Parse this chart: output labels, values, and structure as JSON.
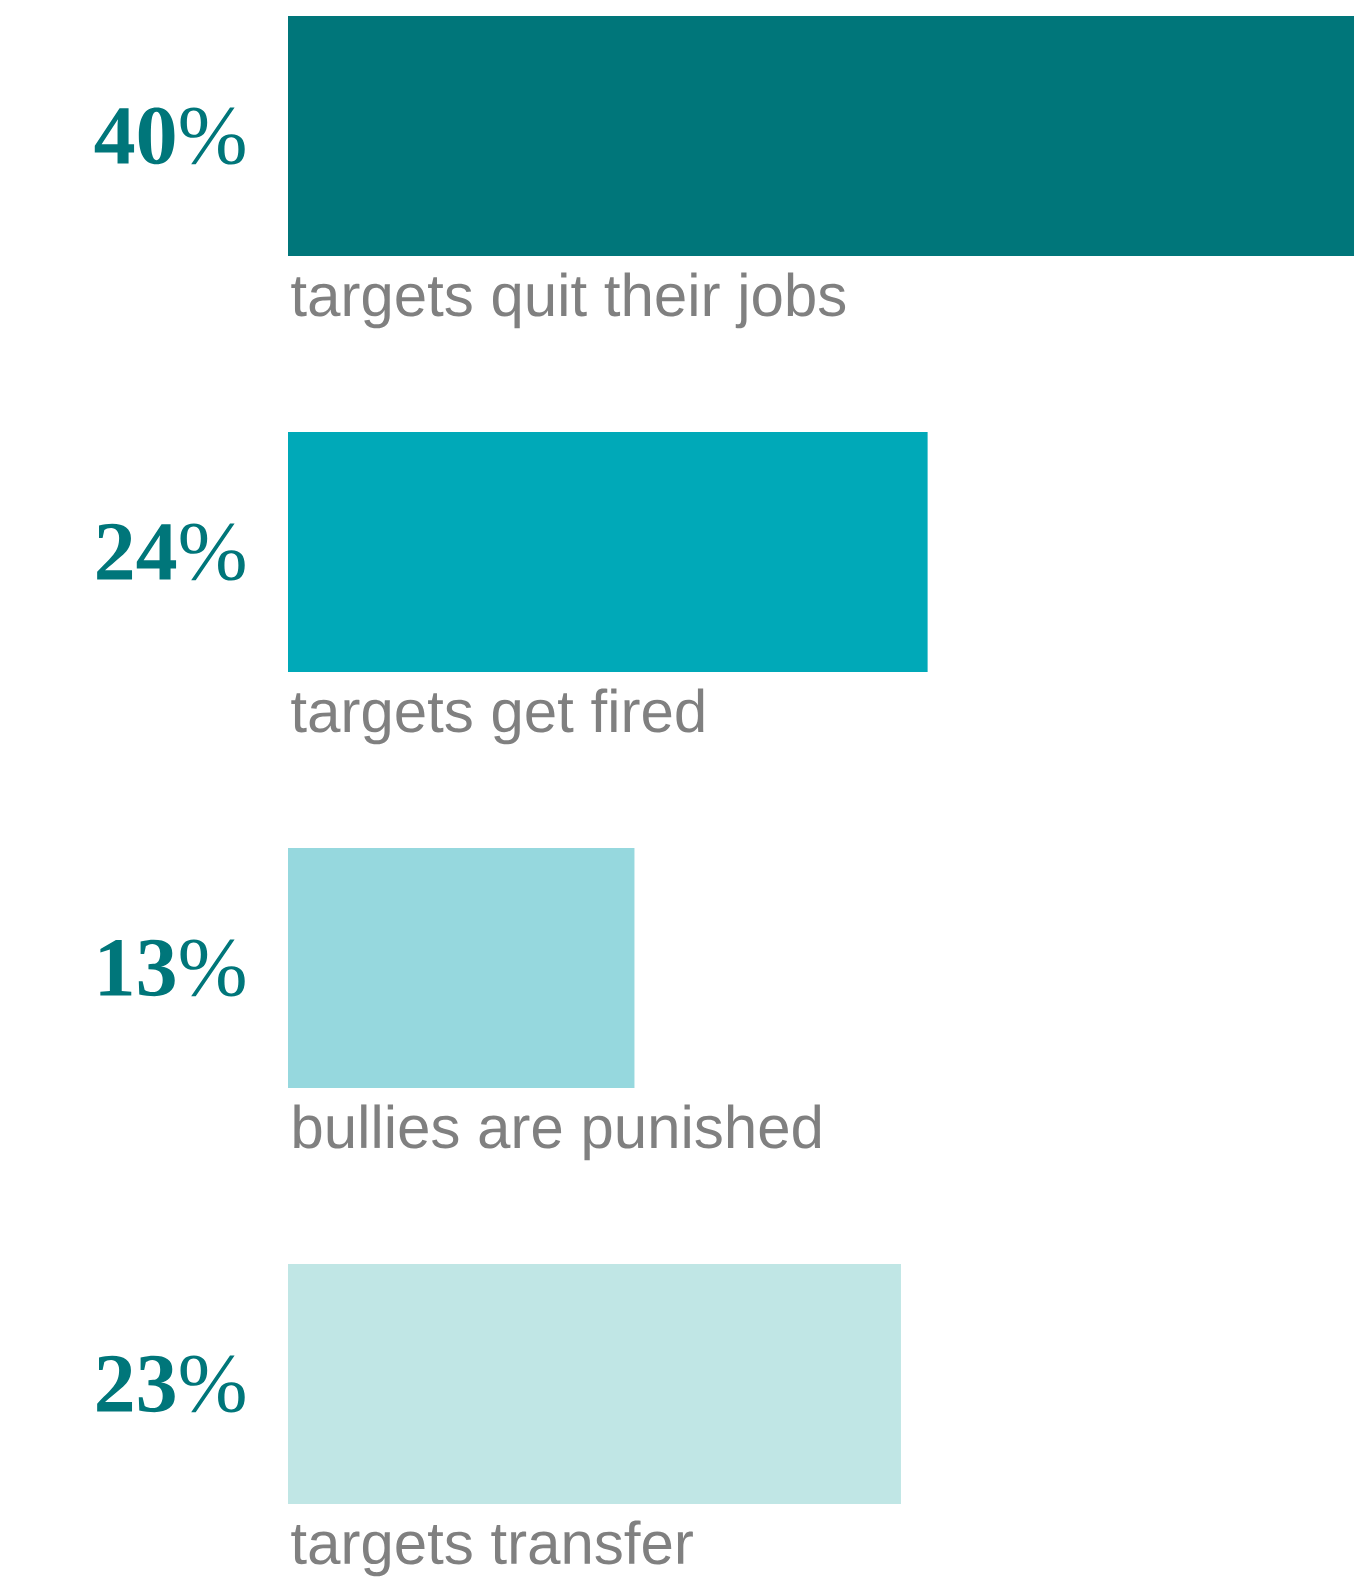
{
  "chart_data": {
    "type": "bar",
    "orientation": "horizontal",
    "categories": [
      "targets quit their jobs",
      "targets get fired",
      "bullies are punished",
      "targets transfer"
    ],
    "values": [
      40,
      24,
      13,
      23
    ],
    "colors": [
      "#00767a",
      "#00a9b8",
      "#96d8de",
      "#c0e6e5"
    ],
    "value_labels": [
      "**40**%",
      "**24**%",
      "**13**%",
      "**23**%"
    ]
  }
}
